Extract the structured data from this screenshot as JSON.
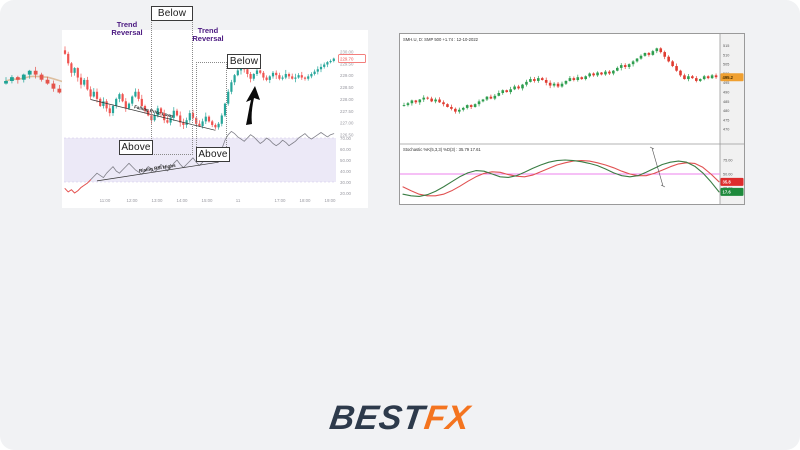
{
  "page": {
    "background": "#f1f2f4"
  },
  "logo": {
    "best": "BEST",
    "fx": "FX",
    "best_color": "#2d3a4b",
    "fx_color": "#f4741f"
  },
  "chart_data": [
    {
      "id": "rsi-divergence-chart",
      "type": "candlestick+rsi",
      "legend_position": "right-axis",
      "annotations": {
        "price_trendline_label": "Falling Price Lows",
        "rsi_trendline_label": "Rising RSI Highs"
      },
      "x_tick_labels": [
        "11:00",
        "12:00",
        "13:00",
        "14:00",
        "15:00",
        "11",
        "17:00",
        "18:00",
        "19:00"
      ],
      "price_axis_labels": [
        "230.00",
        "229.50",
        "229.00",
        "228.50",
        "228.00",
        "227.50",
        "227.00",
        "226.50"
      ],
      "last_price_tag": "229.70",
      "rsi_axis_labels": [
        "70.00",
        "60.00",
        "50.00",
        "40.00",
        "30.00",
        "20.00"
      ],
      "price_range": [
        226.5,
        230.4
      ],
      "rsi_range": [
        20,
        80
      ],
      "closes": [
        229.9,
        229.5,
        229.1,
        229.3,
        228.9,
        228.6,
        228.8,
        228.4,
        228.1,
        228.3,
        228.0,
        227.7,
        227.9,
        227.6,
        227.4,
        227.7,
        228.0,
        228.2,
        227.9,
        227.6,
        227.8,
        228.1,
        228.3,
        228.0,
        227.7,
        227.5,
        227.3,
        227.1,
        227.3,
        227.6,
        227.4,
        227.1,
        227.0,
        227.2,
        227.5,
        227.3,
        227.0,
        226.9,
        227.1,
        227.4,
        227.2,
        226.95,
        226.85,
        227.05,
        227.25,
        227.05,
        226.9,
        226.8,
        226.95,
        227.3,
        227.8,
        228.3,
        228.7,
        229.0,
        229.2,
        229.35,
        229.25,
        229.05,
        228.85,
        229.05,
        229.2,
        229.1,
        228.9,
        228.8,
        228.95,
        229.1,
        229.0,
        228.85,
        228.9,
        229.05,
        228.95,
        228.85,
        228.9,
        229.0,
        228.9,
        228.85,
        228.95,
        229.05,
        229.15,
        229.25,
        229.35,
        229.45,
        229.55,
        229.6,
        229.7
      ],
      "rsi": [
        24,
        21,
        23,
        20,
        22,
        25,
        27,
        29,
        32,
        35,
        38,
        36,
        34,
        38,
        41,
        44,
        40,
        38,
        41,
        44,
        47,
        44,
        41,
        39,
        37,
        40,
        44,
        42,
        39,
        42,
        46,
        43,
        40,
        43,
        47,
        50,
        46,
        43,
        46,
        49,
        52,
        48,
        45,
        48,
        51,
        54,
        57,
        60,
        55,
        60,
        68,
        73,
        76,
        74,
        71,
        69,
        67,
        70,
        73,
        71,
        68,
        65,
        67,
        70,
        68,
        65,
        63,
        65,
        68,
        66,
        63,
        65,
        67,
        70,
        72,
        74,
        71,
        69,
        71,
        73,
        75,
        73,
        71,
        73,
        74
      ],
      "colors": {
        "up": "#26a69a",
        "down": "#ef5350",
        "rsi_line": "#7f7f88",
        "rsi_oversold": "#ef5350",
        "band": "#ece9f7",
        "band_edge": "#cfc4e8",
        "last_price": "#ef5350",
        "axis_text": "#9a9aa2",
        "arrow": "#0a0a0a"
      }
    },
    {
      "id": "oscillator-crossover-chart",
      "type": "candlestick+oscillator",
      "title": "SMH.U, D: SMP 500 +1.74 : 12-10-2022",
      "indicator_label": "Stochastic %K(5,3,3) %D(3) : 35.79 17.61",
      "price_axis_labels": [
        "515",
        "510",
        "505",
        "500",
        "495",
        "490",
        "485",
        "480",
        "475",
        "470"
      ],
      "osc_axis_labels": [
        "75.00",
        "50.00",
        "25.00"
      ],
      "price_tag": "495.2",
      "red_tag": "35.8",
      "green_tag": "17.6",
      "mid_level": 50,
      "closes": [
        30,
        32,
        35,
        33,
        36,
        38,
        37,
        34,
        36,
        33,
        31,
        28,
        26,
        23,
        25,
        27,
        30,
        28,
        31,
        34,
        36,
        39,
        37,
        40,
        43,
        46,
        44,
        47,
        50,
        48,
        52,
        55,
        58,
        56,
        59,
        57,
        54,
        51,
        53,
        50,
        53,
        56,
        59,
        57,
        60,
        58,
        61,
        64,
        62,
        65,
        63,
        66,
        64,
        67,
        70,
        73,
        71,
        74,
        77,
        80,
        83,
        86,
        84,
        88,
        91,
        87,
        82,
        77,
        72,
        67,
        62,
        58,
        61,
        59,
        56,
        58,
        61,
        59,
        62,
        60
      ],
      "osc_green": [
        14,
        11,
        10,
        13,
        19,
        27,
        36,
        45,
        52,
        56,
        55,
        50,
        45,
        44,
        47,
        53,
        60,
        66,
        71,
        74,
        75,
        74,
        72,
        69,
        65,
        59,
        52,
        47,
        45,
        47,
        53,
        60,
        67,
        71,
        73,
        71,
        64,
        52,
        36,
        18
      ],
      "osc_red": [
        27,
        20,
        14,
        11,
        11,
        14,
        20,
        28,
        37,
        45,
        51,
        54,
        53,
        49,
        46,
        45,
        48,
        54,
        60,
        66,
        70,
        73,
        74,
        73,
        70,
        66,
        61,
        55,
        50,
        47,
        47,
        51,
        57,
        63,
        68,
        70,
        69,
        62,
        50,
        36
      ],
      "colors": {
        "up": "#2e9e4f",
        "down": "#e03c31",
        "green_line": "#3a7d44",
        "red_line": "#e05252",
        "mid_line": "#ee82ee",
        "frame": "#9a9a9a",
        "axis_bg": "#f1f1f1",
        "price_tag_bg": "#f0a030",
        "red_tag_bg": "#dd2c2c",
        "green_tag_bg": "#1e8a3c",
        "axis_text": "#555555"
      }
    },
    {
      "id": "ma-trend-reversal-chart",
      "type": "candlestick+ma",
      "labels": {
        "trend_reversal": "Trend Reversal",
        "below": "Below",
        "above": "Above"
      },
      "closes": [
        50,
        53,
        51,
        55,
        58,
        55,
        51,
        48,
        44,
        41,
        45,
        42,
        46,
        52,
        59,
        66,
        73,
        80,
        86,
        82,
        74,
        66,
        58,
        51,
        46,
        49,
        52,
        50,
        54,
        59,
        65,
        71,
        76,
        72,
        56,
        40,
        30,
        25,
        21,
        26,
        22,
        28,
        33,
        30,
        35,
        39,
        36,
        41,
        44,
        42,
        46,
        44,
        48,
        52,
        49,
        54,
        58,
        63
      ],
      "ma_period": 7,
      "colors": {
        "up": "#1fa394",
        "down": "#e4544b",
        "ma": "#ddbf9f",
        "annotation": "#4a1880",
        "circle": "#3b1f6e"
      }
    }
  ]
}
